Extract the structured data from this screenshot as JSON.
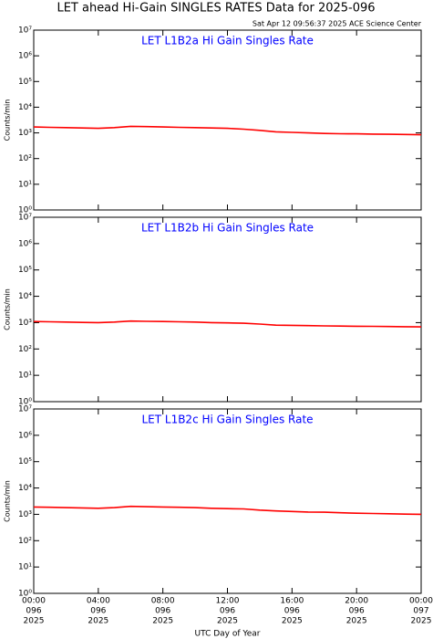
{
  "header": {
    "title": "LET ahead Hi-Gain SINGLES RATES Data for 2025-096",
    "subtitle": "Sat Apr 12 09:56:37 2025 ACE Science Center"
  },
  "chart_data": [
    {
      "type": "line",
      "title": "LET L1B2a Hi Gain Singles Rate",
      "ylabel": "Counts/min",
      "yscale": "log",
      "xlim": [
        0,
        24
      ],
      "xticks": [
        0,
        4,
        8,
        12,
        16,
        20,
        24
      ],
      "ylim": [
        1,
        10000000
      ],
      "yticks": [
        {
          "value": 1,
          "label": "10⁰"
        },
        {
          "value": 10,
          "label": "10¹"
        },
        {
          "value": 100,
          "label": "10²"
        },
        {
          "value": 1000,
          "label": "10³"
        },
        {
          "value": 10000,
          "label": "10⁴"
        },
        {
          "value": 100000,
          "label": "10⁵"
        },
        {
          "value": 1000000,
          "label": "10⁶"
        },
        {
          "value": 10000000,
          "label": "10⁷"
        }
      ],
      "x": [
        0,
        1,
        2,
        3,
        4,
        5,
        6,
        7,
        8,
        9,
        10,
        11,
        12,
        13,
        14,
        15,
        16,
        17,
        18,
        19,
        20,
        21,
        22,
        23,
        24
      ],
      "series": [
        {
          "color": "#ff0000",
          "values": [
            1700,
            1650,
            1600,
            1550,
            1500,
            1600,
            1800,
            1750,
            1700,
            1650,
            1600,
            1550,
            1500,
            1400,
            1250,
            1100,
            1050,
            1000,
            950,
            930,
            920,
            900,
            880,
            870,
            850
          ]
        }
      ]
    },
    {
      "type": "line",
      "title": "LET L1B2b Hi Gain Singles Rate",
      "ylabel": "Counts/min",
      "yscale": "log",
      "xlim": [
        0,
        24
      ],
      "xticks": [
        0,
        4,
        8,
        12,
        16,
        20,
        24
      ],
      "ylim": [
        1,
        10000000
      ],
      "yticks": [
        {
          "value": 1,
          "label": "10⁰"
        },
        {
          "value": 10,
          "label": "10¹"
        },
        {
          "value": 100,
          "label": "10²"
        },
        {
          "value": 1000,
          "label": "10³"
        },
        {
          "value": 10000,
          "label": "10⁴"
        },
        {
          "value": 100000,
          "label": "10⁵"
        },
        {
          "value": 1000000,
          "label": "10⁶"
        },
        {
          "value": 10000000,
          "label": "10⁷"
        }
      ],
      "x": [
        0,
        1,
        2,
        3,
        4,
        5,
        6,
        7,
        8,
        9,
        10,
        11,
        12,
        13,
        14,
        15,
        16,
        17,
        18,
        19,
        20,
        21,
        22,
        23,
        24
      ],
      "series": [
        {
          "color": "#ff0000",
          "values": [
            1100,
            1080,
            1050,
            1020,
            1000,
            1050,
            1150,
            1120,
            1100,
            1080,
            1050,
            1000,
            980,
            950,
            880,
            800,
            790,
            770,
            750,
            740,
            730,
            720,
            710,
            700,
            690
          ]
        }
      ]
    },
    {
      "type": "line",
      "title": "LET L1B2c Hi Gain Singles Rate",
      "ylabel": "Counts/min",
      "yscale": "log",
      "xlabel": "UTC Day of Year",
      "xlim": [
        0,
        24
      ],
      "xticks": [
        {
          "value": 0,
          "label": [
            "00:00",
            "096",
            "2025"
          ]
        },
        {
          "value": 4,
          "label": [
            "04:00",
            "096",
            "2025"
          ]
        },
        {
          "value": 8,
          "label": [
            "08:00",
            "096",
            "2025"
          ]
        },
        {
          "value": 12,
          "label": [
            "12:00",
            "096",
            "2025"
          ]
        },
        {
          "value": 16,
          "label": [
            "16:00",
            "096",
            "2025"
          ]
        },
        {
          "value": 20,
          "label": [
            "20:00",
            "096",
            "2025"
          ]
        },
        {
          "value": 24,
          "label": [
            "00:00",
            "097",
            "2025"
          ]
        }
      ],
      "ylim": [
        1,
        10000000
      ],
      "yticks": [
        {
          "value": 1,
          "label": "10⁰"
        },
        {
          "value": 10,
          "label": "10¹"
        },
        {
          "value": 100,
          "label": "10²"
        },
        {
          "value": 1000,
          "label": "10³"
        },
        {
          "value": 10000,
          "label": "10⁴"
        },
        {
          "value": 100000,
          "label": "10⁵"
        },
        {
          "value": 1000000,
          "label": "10⁶"
        },
        {
          "value": 10000000,
          "label": "10⁷"
        }
      ],
      "x": [
        0,
        1,
        2,
        3,
        4,
        5,
        6,
        7,
        8,
        9,
        10,
        11,
        12,
        13,
        14,
        15,
        16,
        17,
        18,
        19,
        20,
        21,
        22,
        23,
        24
      ],
      "series": [
        {
          "color": "#ff0000",
          "values": [
            1900,
            1850,
            1800,
            1750,
            1700,
            1800,
            2000,
            1950,
            1900,
            1850,
            1800,
            1700,
            1650,
            1600,
            1450,
            1350,
            1280,
            1220,
            1200,
            1150,
            1100,
            1080,
            1050,
            1020,
            1000
          ]
        }
      ]
    }
  ]
}
